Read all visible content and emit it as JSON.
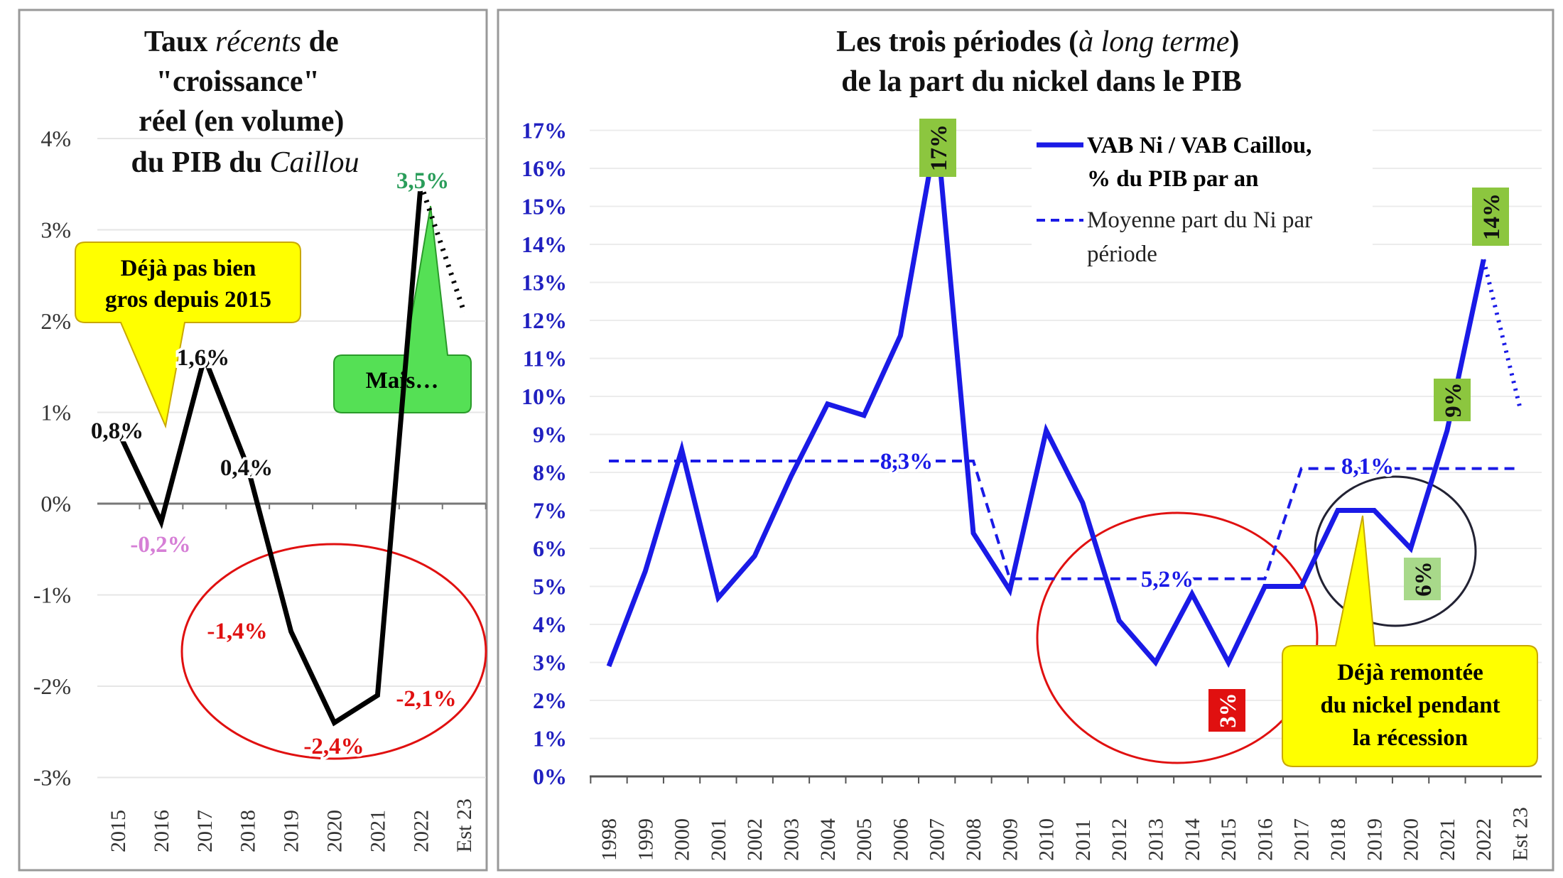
{
  "chart_data": [
    {
      "type": "line",
      "title_parts": [
        "Taux ",
        "récents",
        " de",
        "\"croissance\"",
        "réel (en volume)",
        "du PIB du ",
        "Caillou"
      ],
      "categories": [
        "2015",
        "2016",
        "2017",
        "2018",
        "2019",
        "2020",
        "2021",
        "2022",
        "Est 23"
      ],
      "values": [
        0.8,
        -0.2,
        1.6,
        0.4,
        -1.4,
        -2.4,
        -2.1,
        3.5,
        2.1
      ],
      "estimate_dotted_from": "2022",
      "yticks": [
        "4%",
        "3%",
        "2%",
        "1%",
        "0%",
        "-1%",
        "-2%",
        "-3%"
      ],
      "ylim": [
        -3,
        4
      ],
      "data_labels": [
        {
          "text": "0,8%",
          "color": "#111111"
        },
        {
          "text": "-0,2%",
          "color": "#d67fd6"
        },
        {
          "text": "1,6%",
          "color": "#111111"
        },
        {
          "text": "0,4%",
          "color": "#111111"
        },
        {
          "text": "-1,4%",
          "color": "#e01010"
        },
        {
          "text": "-2,4%",
          "color": "#e01010"
        },
        {
          "text": "-2,1%",
          "color": "#e01010"
        },
        {
          "text": "3,5%",
          "color": "#2a9d5a"
        }
      ],
      "callouts": {
        "yellow": [
          "Déjà pas bien",
          "gros depuis 2015"
        ],
        "green": "Mais…"
      },
      "line_color": "#000000"
    },
    {
      "type": "line",
      "title_parts": [
        "Les trois périodes (",
        "à long terme",
        ")",
        "de la part du nickel dans le PIB"
      ],
      "categories": [
        "1998",
        "1999",
        "2000",
        "2001",
        "2002",
        "2003",
        "2004",
        "2005",
        "2006",
        "2007",
        "2008",
        "2009",
        "2010",
        "2011",
        "2012",
        "2013",
        "2014",
        "2015",
        "2016",
        "2017",
        "2018",
        "2019",
        "2020",
        "2021",
        "2022",
        "Est 23"
      ],
      "series": [
        {
          "name": "VAB Ni / VAB Caillou, % du PIB par an",
          "values": [
            2.9,
            5.4,
            8.6,
            4.7,
            5.8,
            7.9,
            9.8,
            9.5,
            11.6,
            17.0,
            6.4,
            4.9,
            9.1,
            7.2,
            4.1,
            3.0,
            4.8,
            3.0,
            5.0,
            5.0,
            7.0,
            7.0,
            6.0,
            9.1,
            13.6,
            9.7
          ]
        },
        {
          "name": "Moyenne part du Ni par période",
          "values": [
            8.3,
            8.3,
            8.3,
            8.3,
            8.3,
            8.3,
            8.3,
            8.3,
            8.3,
            8.3,
            8.3,
            5.2,
            5.2,
            5.2,
            5.2,
            5.2,
            5.2,
            5.2,
            5.2,
            8.1,
            8.1,
            8.1,
            8.1,
            8.1,
            8.1,
            8.1
          ]
        }
      ],
      "legend": [
        "VAB Ni / VAB Caillou,",
        "% du PIB par an",
        "Moyenne part du Ni par",
        "période"
      ],
      "period_labels": [
        "8,3%",
        "5,2%",
        "8,1%"
      ],
      "highlight_labels": [
        {
          "text": "17%",
          "year": "2007",
          "bg": "#8cc63f"
        },
        {
          "text": "14%",
          "year": "2022",
          "bg": "#8cc63f"
        },
        {
          "text": "9%",
          "year": "2021",
          "bg": "#8cc63f"
        },
        {
          "text": "6%",
          "year": "2020",
          "bg": "#a8d98a"
        },
        {
          "text": "3%",
          "year": "2015",
          "bg": "#e01010"
        }
      ],
      "callout": [
        "Déjà remontée",
        "du nickel pendant",
        "la récession"
      ],
      "yticks": [
        "17%",
        "16%",
        "15%",
        "14%",
        "13%",
        "12%",
        "11%",
        "10%",
        "9%",
        "8%",
        "7%",
        "6%",
        "5%",
        "4%",
        "3%",
        "2%",
        "1%",
        "0%"
      ],
      "ylim": [
        0,
        17
      ],
      "line_color": "#1a1ae6",
      "tick_color": "#2020c0"
    }
  ]
}
